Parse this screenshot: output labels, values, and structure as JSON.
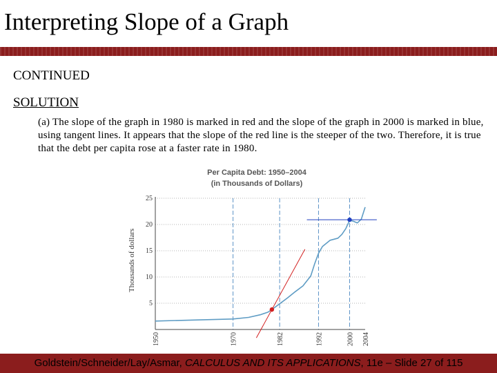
{
  "slide": {
    "title": "Interpreting Slope of a Graph",
    "heading_continued": "CONTINUED",
    "heading_solution": "SOLUTION",
    "paragraph": "(a) The slope of the graph in 1980 is marked in red and the slope of the graph in 2000 is marked in blue, using tangent lines.  It appears that the slope of the red line is the steeper of the two.  Therefore, it is true that the debt per capita rose at a faster rate in 1980.",
    "footer": {
      "authors": "Goldstein/Schneider/Lay/Asmar, ",
      "book": "CALCULUS AND ITS APPLICATIONS",
      "rest": ", 11e – Slide 27 of 115"
    },
    "colors": {
      "bar": "#8b1d1d",
      "curve": "#5e9cc4",
      "red_tangent": "#d32020",
      "blue_tangent": "#1f3fbf",
      "grid": "#5b92c6"
    }
  },
  "chart_data": {
    "type": "line",
    "title_line1": "Per Capita Debt: 1950–2004",
    "title_line2": "(in Thousands of Dollars)",
    "ylabel": "Thousands of dollars",
    "xlim": [
      1950,
      2004
    ],
    "ylim": [
      0,
      25
    ],
    "xticks": [
      1950,
      1970,
      1982,
      1992,
      2000,
      2004
    ],
    "xtick_labels": [
      "1950",
      "1970",
      "1982",
      "1992",
      "2000",
      "2004"
    ],
    "yticks": [
      5,
      10,
      15,
      20,
      25
    ],
    "ytick_labels": [
      "5",
      "10",
      "15",
      "20",
      "25"
    ],
    "vertical_gridlines_x": [
      1970,
      1982,
      1992,
      2000
    ],
    "series": [
      {
        "x": [
          1950,
          1960,
          1970,
          1974,
          1977,
          1979,
          1980,
          1982,
          1984,
          1986,
          1988,
          1990,
          1991,
          1992,
          1993,
          1995,
          1996,
          1997,
          1998,
          1999,
          2000,
          2001,
          2002,
          2003,
          2004
        ],
        "y": [
          1.6,
          1.8,
          2.0,
          2.3,
          2.8,
          3.3,
          3.8,
          4.9,
          6.0,
          7.2,
          8.3,
          10.2,
          12.5,
          14.5,
          15.8,
          17.0,
          17.2,
          17.4,
          18.1,
          19.2,
          20.8,
          20.6,
          20.3,
          21.0,
          23.3
        ]
      }
    ],
    "tangents": [
      {
        "color": "red",
        "point": [
          1980,
          3.8
        ],
        "x_range": [
          1976,
          1988.5
        ]
      },
      {
        "color": "blue",
        "point": [
          2000,
          20.9
        ],
        "x_range": [
          1989,
          2007
        ]
      }
    ]
  }
}
